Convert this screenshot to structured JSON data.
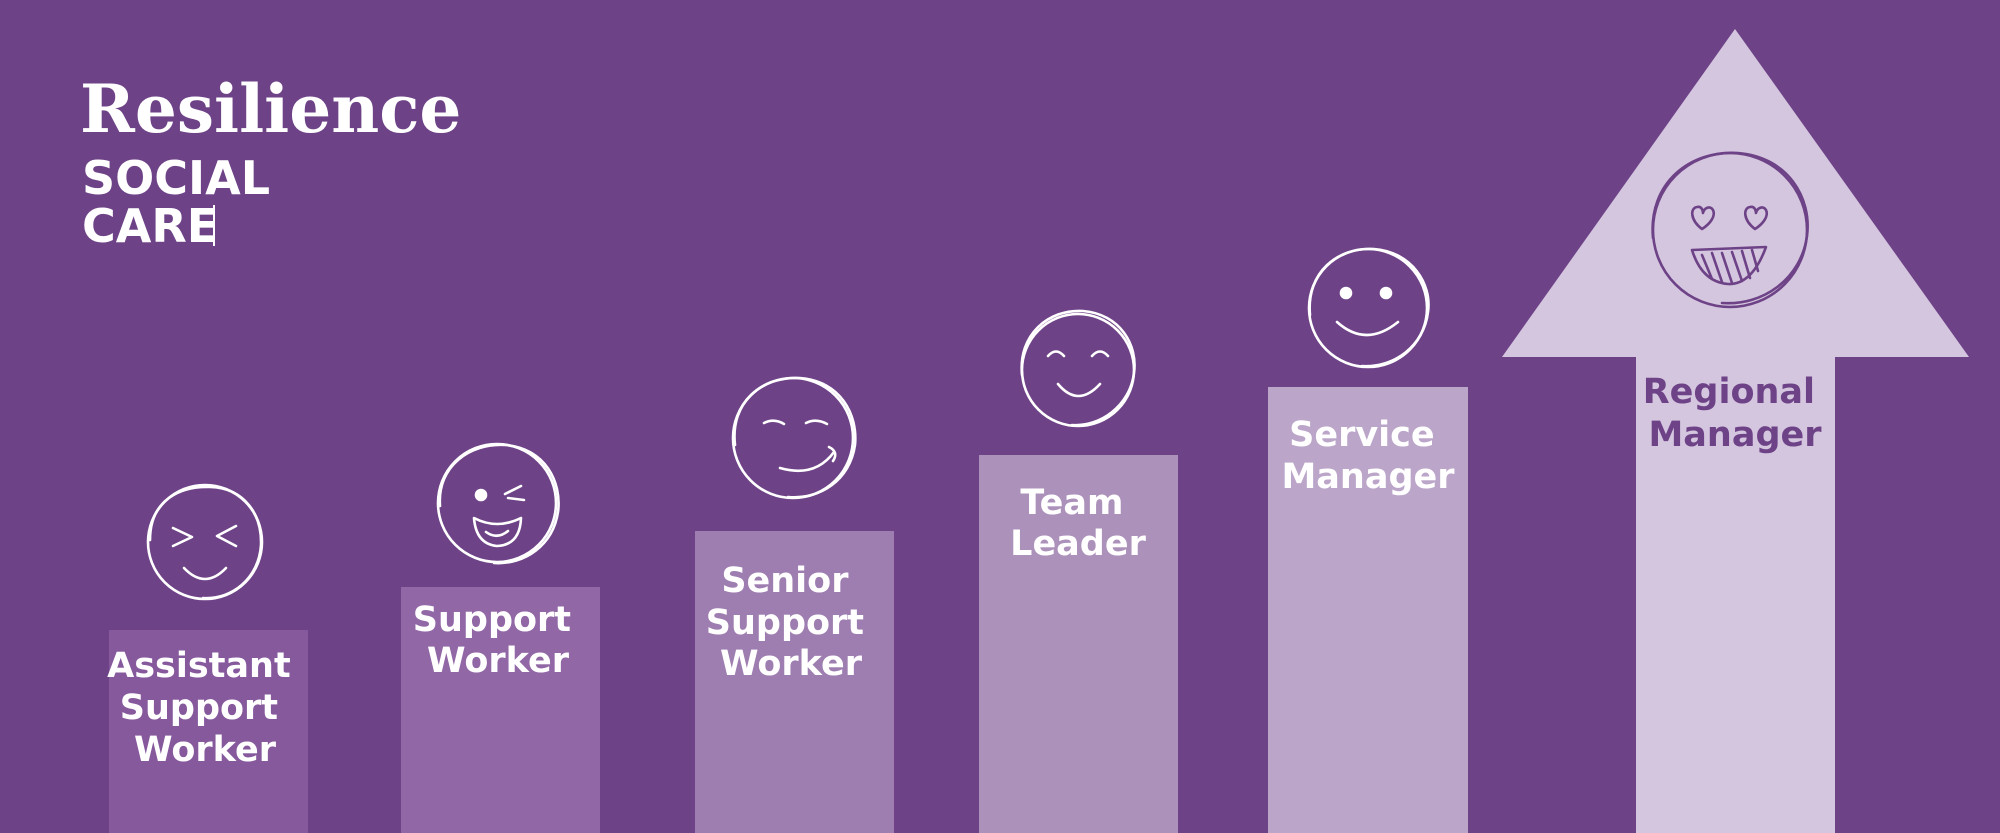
{
  "logo": {
    "title": "Resilience",
    "subtitle_line1": "SOCIAL",
    "subtitle_line2": "CARE"
  },
  "steps": [
    {
      "lines": [
        "Assistant",
        "Support",
        "Worker"
      ],
      "face_icon": "squint-laugh-face-icon",
      "color": "#86599d"
    },
    {
      "lines": [
        "Support",
        "Worker"
      ],
      "face_icon": "wink-tongue-face-icon",
      "color": "#9167a6"
    },
    {
      "lines": [
        "Senior",
        "Support",
        "Worker"
      ],
      "face_icon": "smirk-face-icon",
      "color": "#9e7db0"
    },
    {
      "lines": [
        "Team",
        "Leader"
      ],
      "face_icon": "happy-face-icon",
      "color": "#ac91bb"
    },
    {
      "lines": [
        "Service",
        "Manager"
      ],
      "face_icon": "smile-face-icon",
      "color": "#bba5c9"
    },
    {
      "lines": [
        "Regional",
        "Manager"
      ],
      "face_icon": "heart-eyes-face-icon",
      "color": "#d4c6df"
    }
  ],
  "colors": {
    "background": "#6e4287",
    "text_light": "#ffffff",
    "text_dark": "#6e4287"
  }
}
